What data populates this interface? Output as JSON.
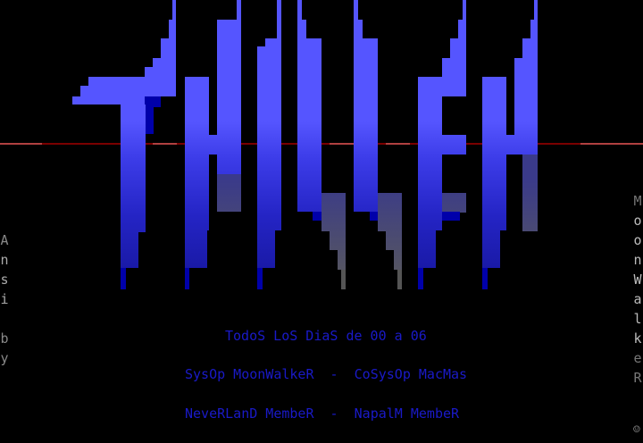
{
  "colors": {
    "background": "#000000",
    "logo_light": "#5555ff",
    "logo_dark": "#0000aa",
    "rule": "#aa0000",
    "text": "#1a1ac8"
  },
  "lines": [
    "TodoS LoS DiaS de 00 a 06",
    "SysOp MoonWalkeR  -  CoSysOp MacMas",
    "NeveRLanD MembeR  -  NapalM MembeR"
  ],
  "left_vertical": [
    "A",
    "n",
    "s",
    "i",
    "",
    "b",
    "y"
  ],
  "right_vertical": [
    "M",
    "o",
    "o",
    "n",
    "W",
    "a",
    "l",
    "k",
    "e",
    "R"
  ],
  "corner_icon": "smiley-icon"
}
